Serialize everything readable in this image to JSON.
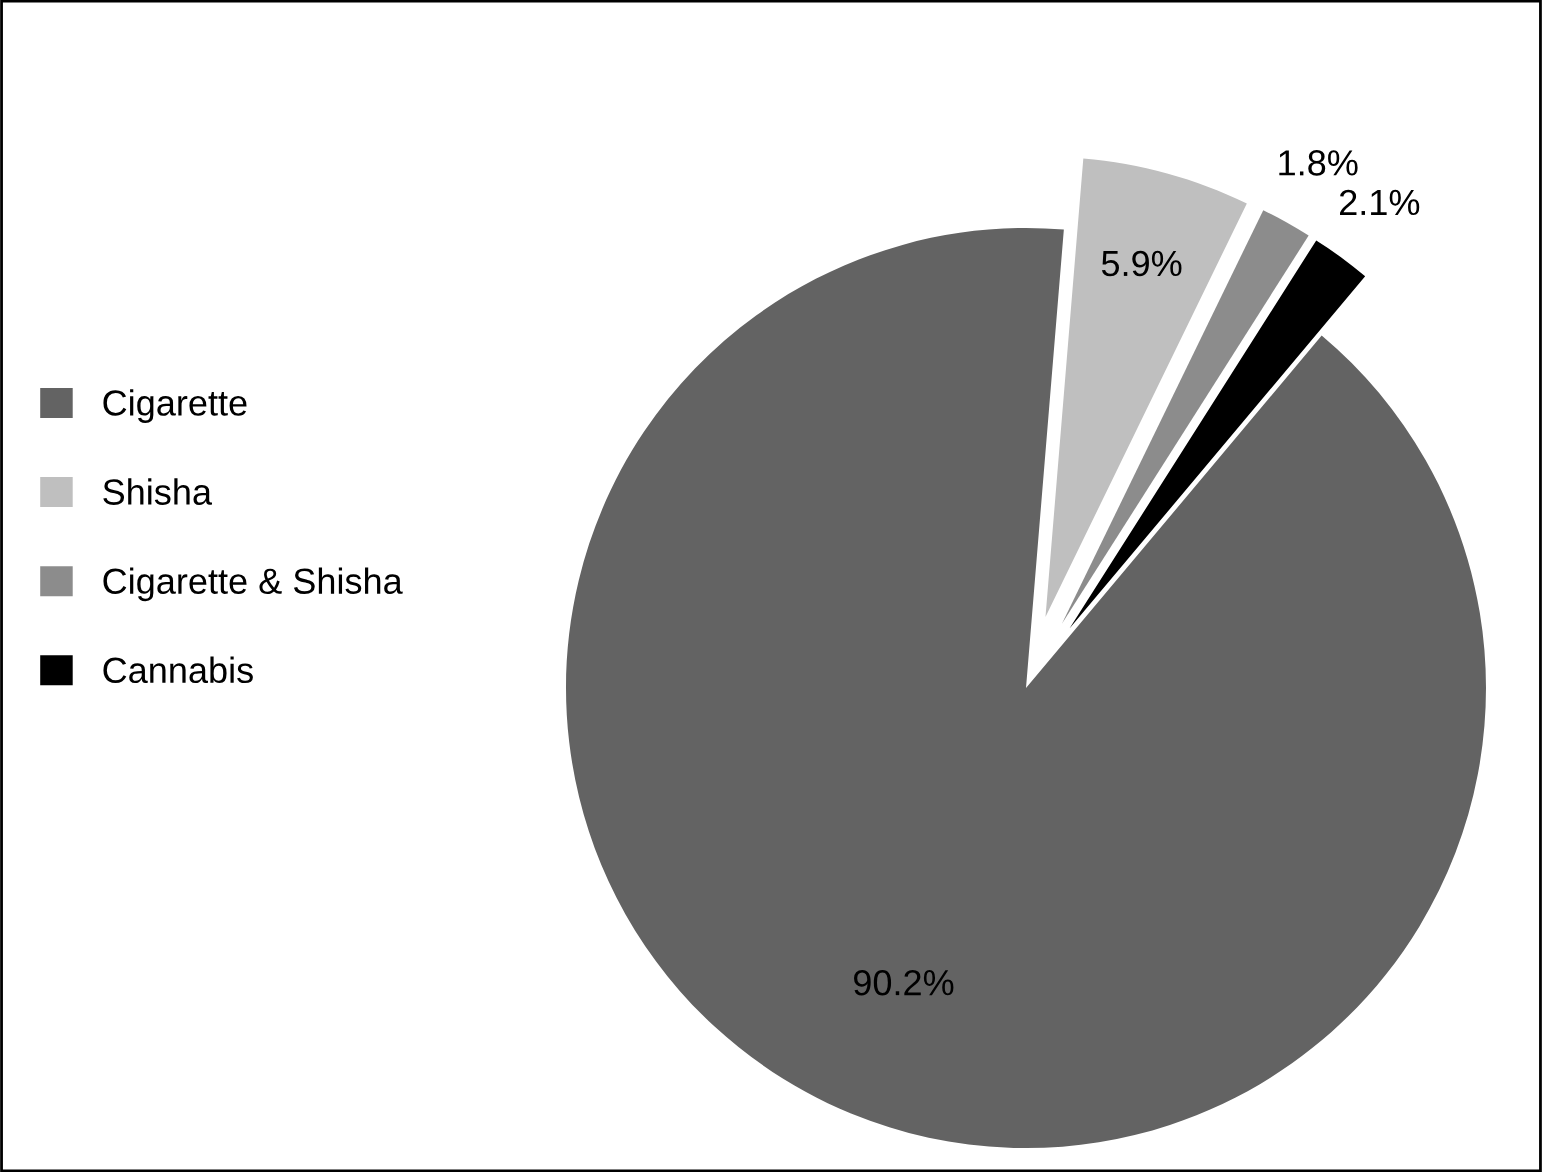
{
  "chart_data": {
    "type": "pie",
    "categories": [
      "Cigarette",
      "Shisha",
      "Cigarette & Shisha",
      "Cannabis"
    ],
    "values": [
      90.2,
      5.9,
      1.8,
      2.1
    ],
    "colors": [
      "#636363",
      "#bfbfbf",
      "#8c8c8c",
      "#000000"
    ],
    "value_labels": [
      "90.2%",
      "5.9%",
      "1.8%",
      "2.1%"
    ],
    "legend": "left"
  }
}
